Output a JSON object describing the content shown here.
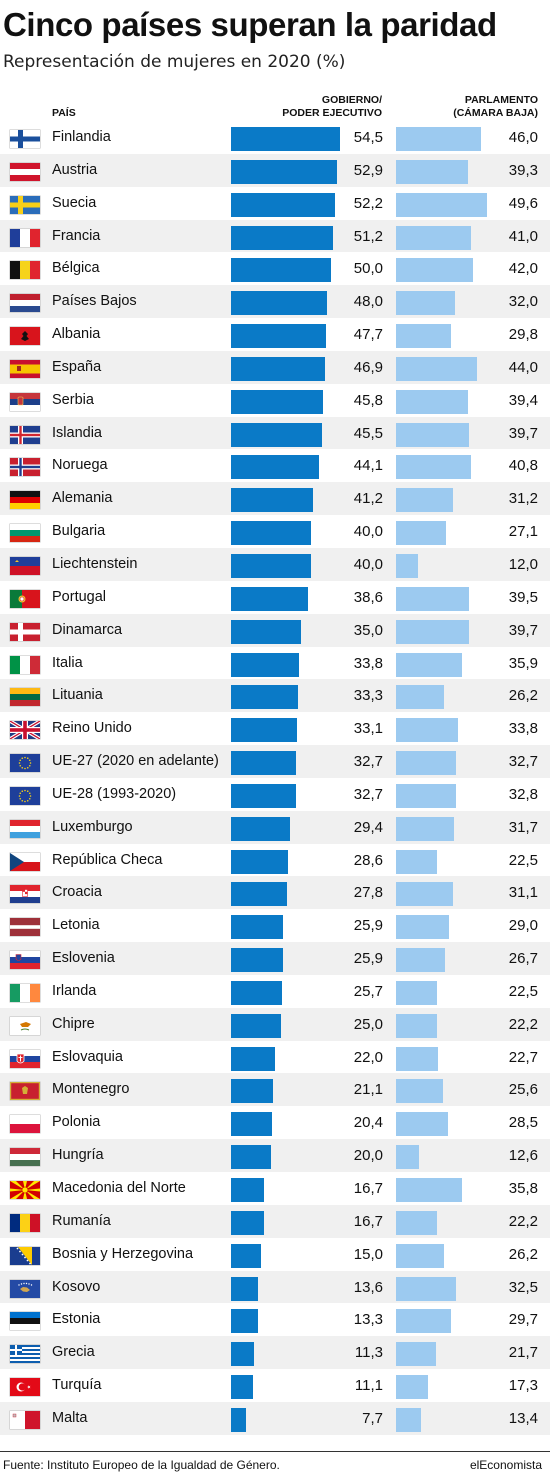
{
  "title": "Cinco países superan la paridad",
  "subtitle": "Representación de mujeres en 2020 (%)",
  "headers": {
    "country": "PAÍS",
    "gov_line1": "GOBIERNO/",
    "gov_line2": "PODER EJECUTIVO",
    "parl_line1": "PARLAMENTO",
    "parl_line2": "(CÁMARA BAJA)"
  },
  "colors": {
    "government": "#0a7ac7",
    "parliament": "#9ccaf0",
    "row_alt": "#f0f0f0"
  },
  "source": "Fuente: Instituto Europeo de la Igualdad de Género.",
  "brand": "elEconomista",
  "chart_data": {
    "type": "bar",
    "orientation": "horizontal",
    "title": "Cinco países superan la paridad",
    "subtitle": "Representación de mujeres en 2020 (%)",
    "categories": [
      "Finlandia",
      "Austria",
      "Suecia",
      "Francia",
      "Bélgica",
      "Países Bajos",
      "Albania",
      "España",
      "Serbia",
      "Islandia",
      "Noruega",
      "Alemania",
      "Bulgaria",
      "Liechtenstein",
      "Portugal",
      "Dinamarca",
      "Italia",
      "Lituania",
      "Reino Unido",
      "UE-27 (2020 en adelante)",
      "UE-28 (1993-2020)",
      "Luxemburgo",
      "República Checa",
      "Croacia",
      "Letonia",
      "Eslovenia",
      "Irlanda",
      "Chipre",
      "Eslovaquia",
      "Montenegro",
      "Polonia",
      "Hungría",
      "Macedonia del Norte",
      "Rumanía",
      "Bosnia y Herzegovina",
      "Kosovo",
      "Estonia",
      "Grecia",
      "Turquía",
      "Malta"
    ],
    "flags": [
      "finland-flag-icon",
      "austria-flag-icon",
      "sweden-flag-icon",
      "france-flag-icon",
      "belgium-flag-icon",
      "netherlands-flag-icon",
      "albania-flag-icon",
      "spain-flag-icon",
      "serbia-flag-icon",
      "iceland-flag-icon",
      "norway-flag-icon",
      "germany-flag-icon",
      "bulgaria-flag-icon",
      "liechtenstein-flag-icon",
      "portugal-flag-icon",
      "denmark-flag-icon",
      "italy-flag-icon",
      "lithuania-flag-icon",
      "uk-flag-icon",
      "eu-flag-icon",
      "eu-flag-icon",
      "luxembourg-flag-icon",
      "czech-flag-icon",
      "croatia-flag-icon",
      "latvia-flag-icon",
      "slovenia-flag-icon",
      "ireland-flag-icon",
      "cyprus-flag-icon",
      "slovakia-flag-icon",
      "montenegro-flag-icon",
      "poland-flag-icon",
      "hungary-flag-icon",
      "north-macedonia-flag-icon",
      "romania-flag-icon",
      "bosnia-flag-icon",
      "kosovo-flag-icon",
      "estonia-flag-icon",
      "greece-flag-icon",
      "turkey-flag-icon",
      "malta-flag-icon"
    ],
    "series": [
      {
        "name": "GOBIERNO/ PODER EJECUTIVO",
        "values": [
          "54,5",
          "52,9",
          "52,2",
          "51,2",
          "50,0",
          "48,0",
          "47,7",
          "46,9",
          "45,8",
          "45,5",
          "44,1",
          "41,2",
          "40,0",
          "40,0",
          "38,6",
          "35,0",
          "33,8",
          "33,3",
          "33,1",
          "32,7",
          "32,7",
          "29,4",
          "28,6",
          "27,8",
          "25,9",
          "25,9",
          "25,7",
          "25,0",
          "22,0",
          "21,1",
          "20,4",
          "20,0",
          "16,7",
          "16,7",
          "15,0",
          "13,6",
          "13,3",
          "11,3",
          "11,1",
          "7,7"
        ]
      },
      {
        "name": "PARLAMENTO (CÁMARA BAJA)",
        "values": [
          "46,0",
          "39,3",
          "49,6",
          "41,0",
          "42,0",
          "32,0",
          "29,8",
          "44,0",
          "39,4",
          "39,7",
          "40,8",
          "31,2",
          "27,1",
          "12,0",
          "39,5",
          "39,7",
          "35,9",
          "26,2",
          "33,8",
          "32,7",
          "32,8",
          "31,7",
          "22,5",
          "31,1",
          "29,0",
          "26,7",
          "22,5",
          "22,2",
          "22,7",
          "25,6",
          "28,5",
          "12,6",
          "35,8",
          "22,2",
          "26,2",
          "32,5",
          "29,7",
          "21,7",
          "17,3",
          "13,4"
        ]
      }
    ],
    "xlim": [
      0,
      55
    ],
    "grid": false,
    "legend": "none"
  }
}
